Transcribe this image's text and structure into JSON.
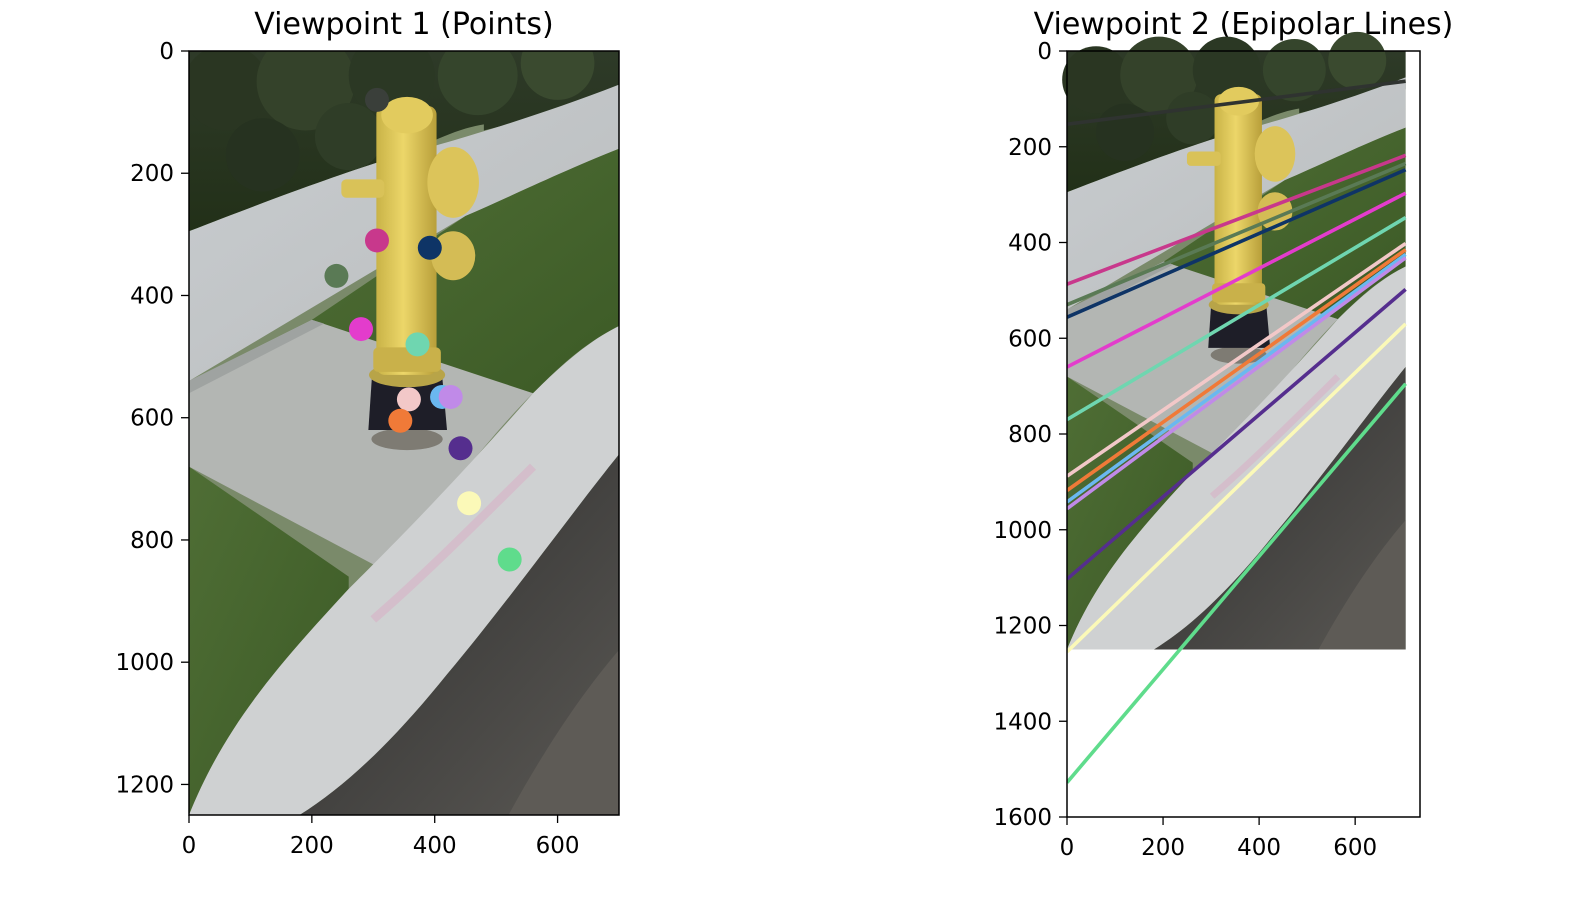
{
  "chart_data": [
    {
      "type": "scatter",
      "title": "Viewpoint 1 (Points)",
      "background": "photo-hydrant",
      "xlim": [
        0,
        700
      ],
      "ylim": [
        1250,
        0
      ],
      "xticks": [
        0,
        200,
        400,
        600
      ],
      "yticks": [
        0,
        200,
        400,
        600,
        800,
        1000,
        1200
      ],
      "points": [
        {
          "x": 306,
          "y": 80,
          "color": "#3a3f3a"
        },
        {
          "x": 306,
          "y": 310,
          "color": "#c8388c"
        },
        {
          "x": 392,
          "y": 322,
          "color": "#0e3466"
        },
        {
          "x": 240,
          "y": 368,
          "color": "#5a7a55"
        },
        {
          "x": 280,
          "y": 455,
          "color": "#e33ccc"
        },
        {
          "x": 372,
          "y": 480,
          "color": "#6fd6b0"
        },
        {
          "x": 358,
          "y": 570,
          "color": "#f2c8c8"
        },
        {
          "x": 412,
          "y": 566,
          "color": "#6ab8f0"
        },
        {
          "x": 426,
          "y": 566,
          "color": "#c08ae8"
        },
        {
          "x": 344,
          "y": 605,
          "color": "#f07a38"
        },
        {
          "x": 442,
          "y": 650,
          "color": "#552e8e"
        },
        {
          "x": 456,
          "y": 740,
          "color": "#fbf9b8"
        },
        {
          "x": 522,
          "y": 832,
          "color": "#5fdc8c"
        }
      ]
    },
    {
      "type": "line",
      "title": "Viewpoint 2 (Epipolar Lines)",
      "background": "photo-hydrant",
      "image_extent": {
        "x": [
          0,
          705
        ],
        "y": [
          0,
          1250
        ]
      },
      "xlim": [
        0,
        735
      ],
      "ylim": [
        1600,
        0
      ],
      "xticks": [
        0,
        200,
        400,
        600
      ],
      "yticks": [
        0,
        200,
        400,
        600,
        800,
        1000,
        1200,
        1400,
        1600
      ],
      "series": [
        {
          "color": "#2f3330",
          "x": [
            0,
            705
          ],
          "y": [
            153,
            63
          ]
        },
        {
          "color": "#c8388c",
          "x": [
            0,
            705
          ],
          "y": [
            487,
            218
          ]
        },
        {
          "color": "#5a7a55",
          "x": [
            0,
            705
          ],
          "y": [
            530,
            235
          ]
        },
        {
          "color": "#0e3466",
          "x": [
            0,
            705
          ],
          "y": [
            556,
            248
          ]
        },
        {
          "color": "#e33ccc",
          "x": [
            0,
            705
          ],
          "y": [
            660,
            297
          ]
        },
        {
          "color": "#6fd6b0",
          "x": [
            0,
            705
          ],
          "y": [
            770,
            348
          ]
        },
        {
          "color": "#f2c8c8",
          "x": [
            0,
            705
          ],
          "y": [
            888,
            402
          ]
        },
        {
          "color": "#f07a38",
          "x": [
            0,
            705
          ],
          "y": [
            918,
            415
          ]
        },
        {
          "color": "#6ab8f0",
          "x": [
            0,
            705
          ],
          "y": [
            942,
            425
          ]
        },
        {
          "color": "#c08ae8",
          "x": [
            0,
            705
          ],
          "y": [
            956,
            432
          ]
        },
        {
          "color": "#552e8e",
          "x": [
            0,
            705
          ],
          "y": [
            1103,
            498
          ]
        },
        {
          "color": "#fbf9b8",
          "x": [
            0,
            705
          ],
          "y": [
            1255,
            570
          ]
        },
        {
          "color": "#5fdc8c",
          "x": [
            0,
            705
          ],
          "y": [
            1528,
            695
          ]
        }
      ]
    }
  ]
}
